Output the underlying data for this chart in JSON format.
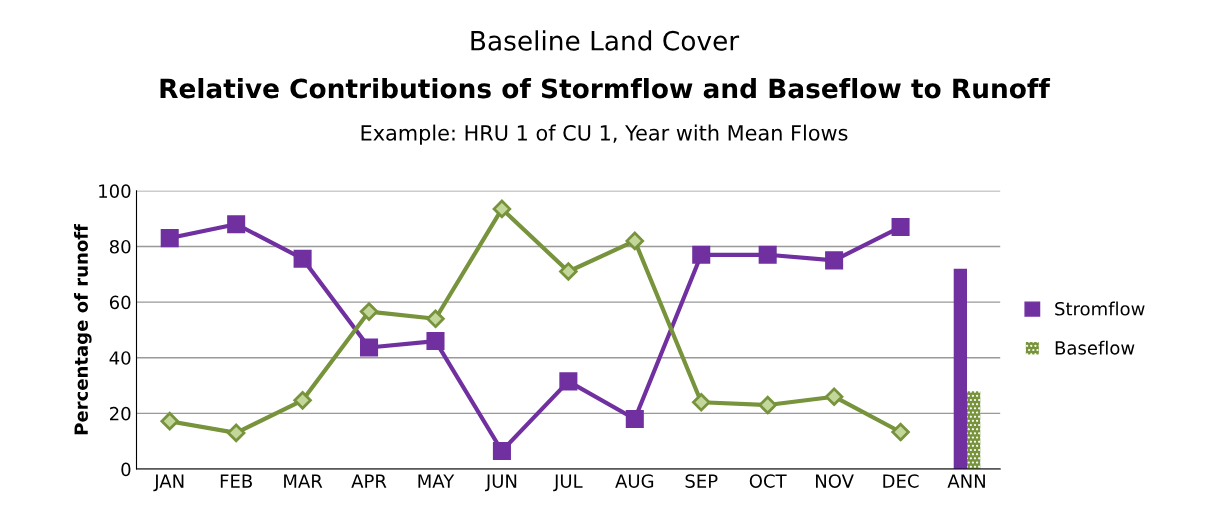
{
  "chart_data": {
    "type": "line",
    "title": "Baseline Land Cover",
    "subtitle": "Relative Contributions of Stormflow and Baseflow to Runoff",
    "annotations": [
      "Example: HRU 1 of CU 1, Year with Mean Flows"
    ],
    "ylabel": "Percentage of runoff",
    "categories": [
      "JAN",
      "FEB",
      "MAR",
      "APR",
      "MAY",
      "JUN",
      "JUL",
      "AUG",
      "SEP",
      "OCT",
      "NOV",
      "DEC",
      "ANN"
    ],
    "series": [
      {
        "color": "#7030a0",
        "marker": "square",
        "values": [
          83,
          88,
          75.6,
          43.7,
          46,
          6.5,
          31.5,
          18,
          77,
          77,
          75,
          87,
          null
        ]
      },
      {
        "color": "#77933c",
        "marker": "diamond",
        "values": [
          17.2,
          13,
          24.7,
          56.6,
          54,
          93.5,
          71,
          82,
          24,
          23,
          26,
          13.3,
          null
        ]
      },
      {
        "type": "bar",
        "name": "Stromflow",
        "color": "#7030a0",
        "values": [
          null,
          null,
          null,
          null,
          null,
          null,
          null,
          null,
          null,
          null,
          null,
          null,
          72
        ]
      },
      {
        "type": "bar",
        "name": "Baseflow",
        "color": "#77933c",
        "values": [
          null,
          null,
          null,
          null,
          null,
          null,
          null,
          null,
          null,
          null,
          null,
          null,
          28
        ]
      }
    ],
    "ylim": [
      0,
      100
    ],
    "yticks": [
      0,
      20,
      40,
      60,
      80,
      100
    ],
    "grid": "y",
    "legend": "right",
    "line_style": "solid"
  }
}
